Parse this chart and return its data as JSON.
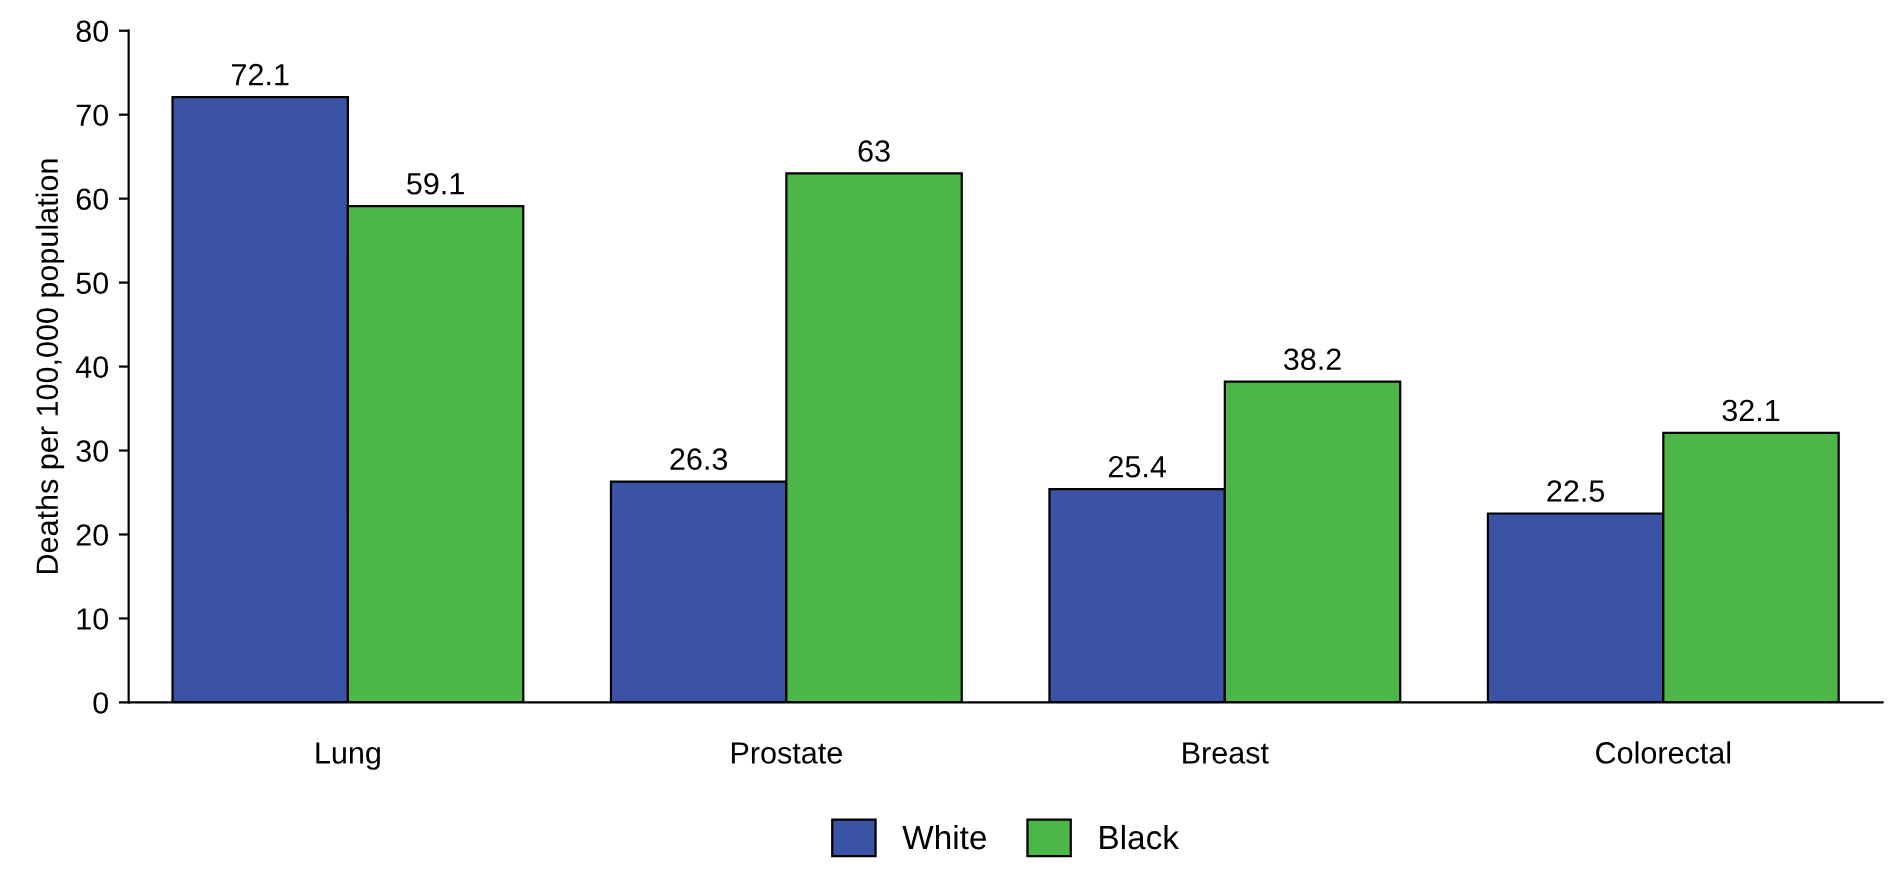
{
  "chart_data": {
    "type": "bar",
    "ylabel": "Deaths per 100,000 population",
    "categories": [
      "Lung",
      "Prostate",
      "Breast",
      "Colorectal"
    ],
    "series": [
      {
        "name": "White",
        "color": "#3a53a4",
        "values": [
          72.1,
          26.3,
          25.4,
          22.5
        ]
      },
      {
        "name": "Black",
        "color": "#4cb748",
        "values": [
          59.1,
          63,
          38.2,
          32.1
        ]
      }
    ],
    "ylim": [
      0,
      80
    ],
    "yticks": [
      0,
      10,
      20,
      30,
      40,
      50,
      60,
      70,
      80
    ],
    "data_labels": true,
    "grid": false,
    "legend": "bottom"
  }
}
